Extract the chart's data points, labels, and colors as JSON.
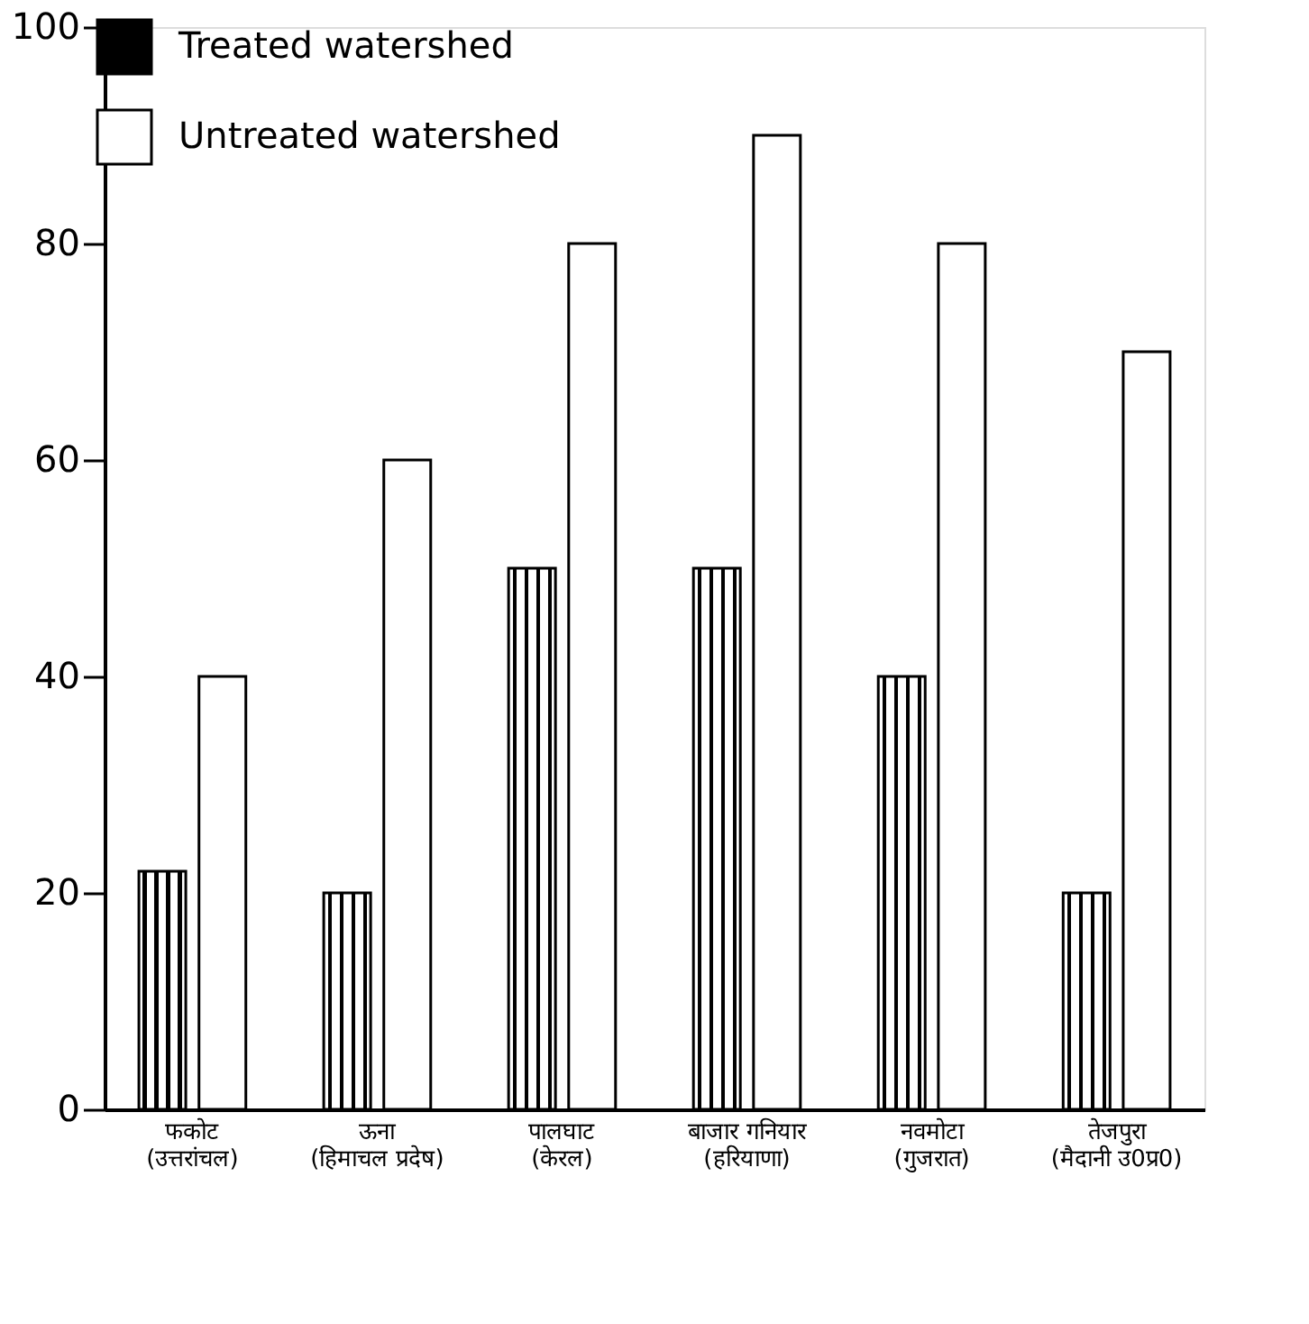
{
  "chart_data": {
    "type": "bar",
    "categories": [
      "फकोट\n(उत्तरांचल)",
      "ऊना\n(हिमाचल प्रदेष)",
      "पालघाट\n(केरल)",
      "बाजार गनियार\n(हरियाणा)",
      "नवमोटा\n(गुजरात)",
      "तेजपुरा\n(मैदानी उ0प्र0)"
    ],
    "series": [
      {
        "name": "Treated watershed",
        "color": "#000000",
        "values": [
          22,
          20,
          50,
          50,
          40,
          20
        ]
      },
      {
        "name": "Untreated watershed",
        "color": "#ffffff",
        "values": [
          40,
          60,
          80,
          90,
          80,
          70
        ]
      }
    ],
    "ylim": [
      0,
      100
    ],
    "yticks": [
      0,
      20,
      40,
      60,
      80,
      100
    ],
    "grid": false,
    "legend": "top left"
  }
}
